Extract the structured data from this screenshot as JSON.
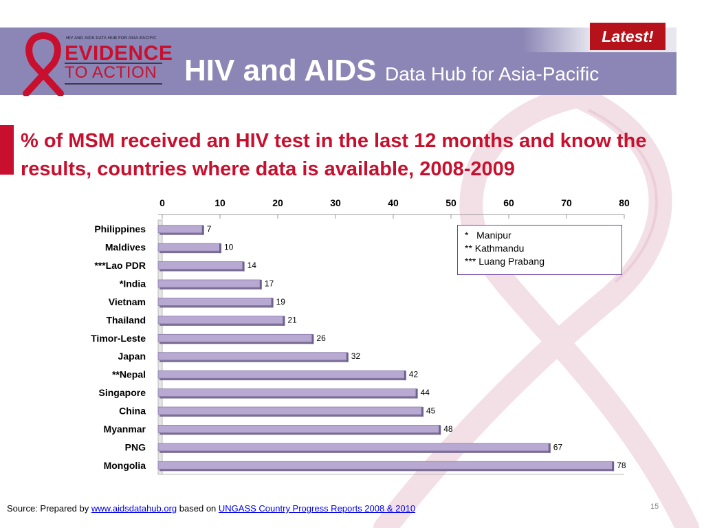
{
  "logo": {
    "tagline": "HIV AND AIDS DATA HUB FOR ASIA-PACIFIC",
    "line1": "EVIDENCE",
    "line2": "TO ACTION"
  },
  "header": {
    "title_main": "HIV and AIDS",
    "title_sub": "Data Hub for Asia-Pacific",
    "badge": "Latest!"
  },
  "colors": {
    "brand_red": "#c8102e",
    "header_band": "#8b86b5",
    "bar_fill": "#b8a9d3",
    "badge": "#b5121b"
  },
  "main_title": "% of MSM received an HIV test in the last 12 months and know the results, countries where data is available, 2008-2009",
  "notes": [
    "*   Manipur",
    "** Kathmandu",
    "*** Luang Prabang"
  ],
  "source": {
    "prefix": "Source:  Prepared by ",
    "link1": "www.aidsdatahub.org",
    "middle": " based on ",
    "link2": "UNGASS Country Progress Reports  2008 & 2010"
  },
  "page_number": "15",
  "chart_data": {
    "type": "bar",
    "orientation": "horizontal",
    "categories": [
      "Philippines",
      "Maldives",
      "***Lao PDR",
      "*India",
      "Vietnam",
      "Thailand",
      "Timor-Leste",
      "Japan",
      "**Nepal",
      "Singapore",
      "China",
      "Myanmar",
      "PNG",
      "Mongolia"
    ],
    "values": [
      7,
      10,
      14,
      17,
      19,
      21,
      26,
      32,
      42,
      44,
      45,
      48,
      67,
      78
    ],
    "xlim": [
      0,
      80
    ],
    "xticks": [
      "0",
      "10",
      "20",
      "30",
      "40",
      "50",
      "60",
      "70",
      "80"
    ],
    "axis_position": "top",
    "grid": true,
    "data_labels": true
  }
}
